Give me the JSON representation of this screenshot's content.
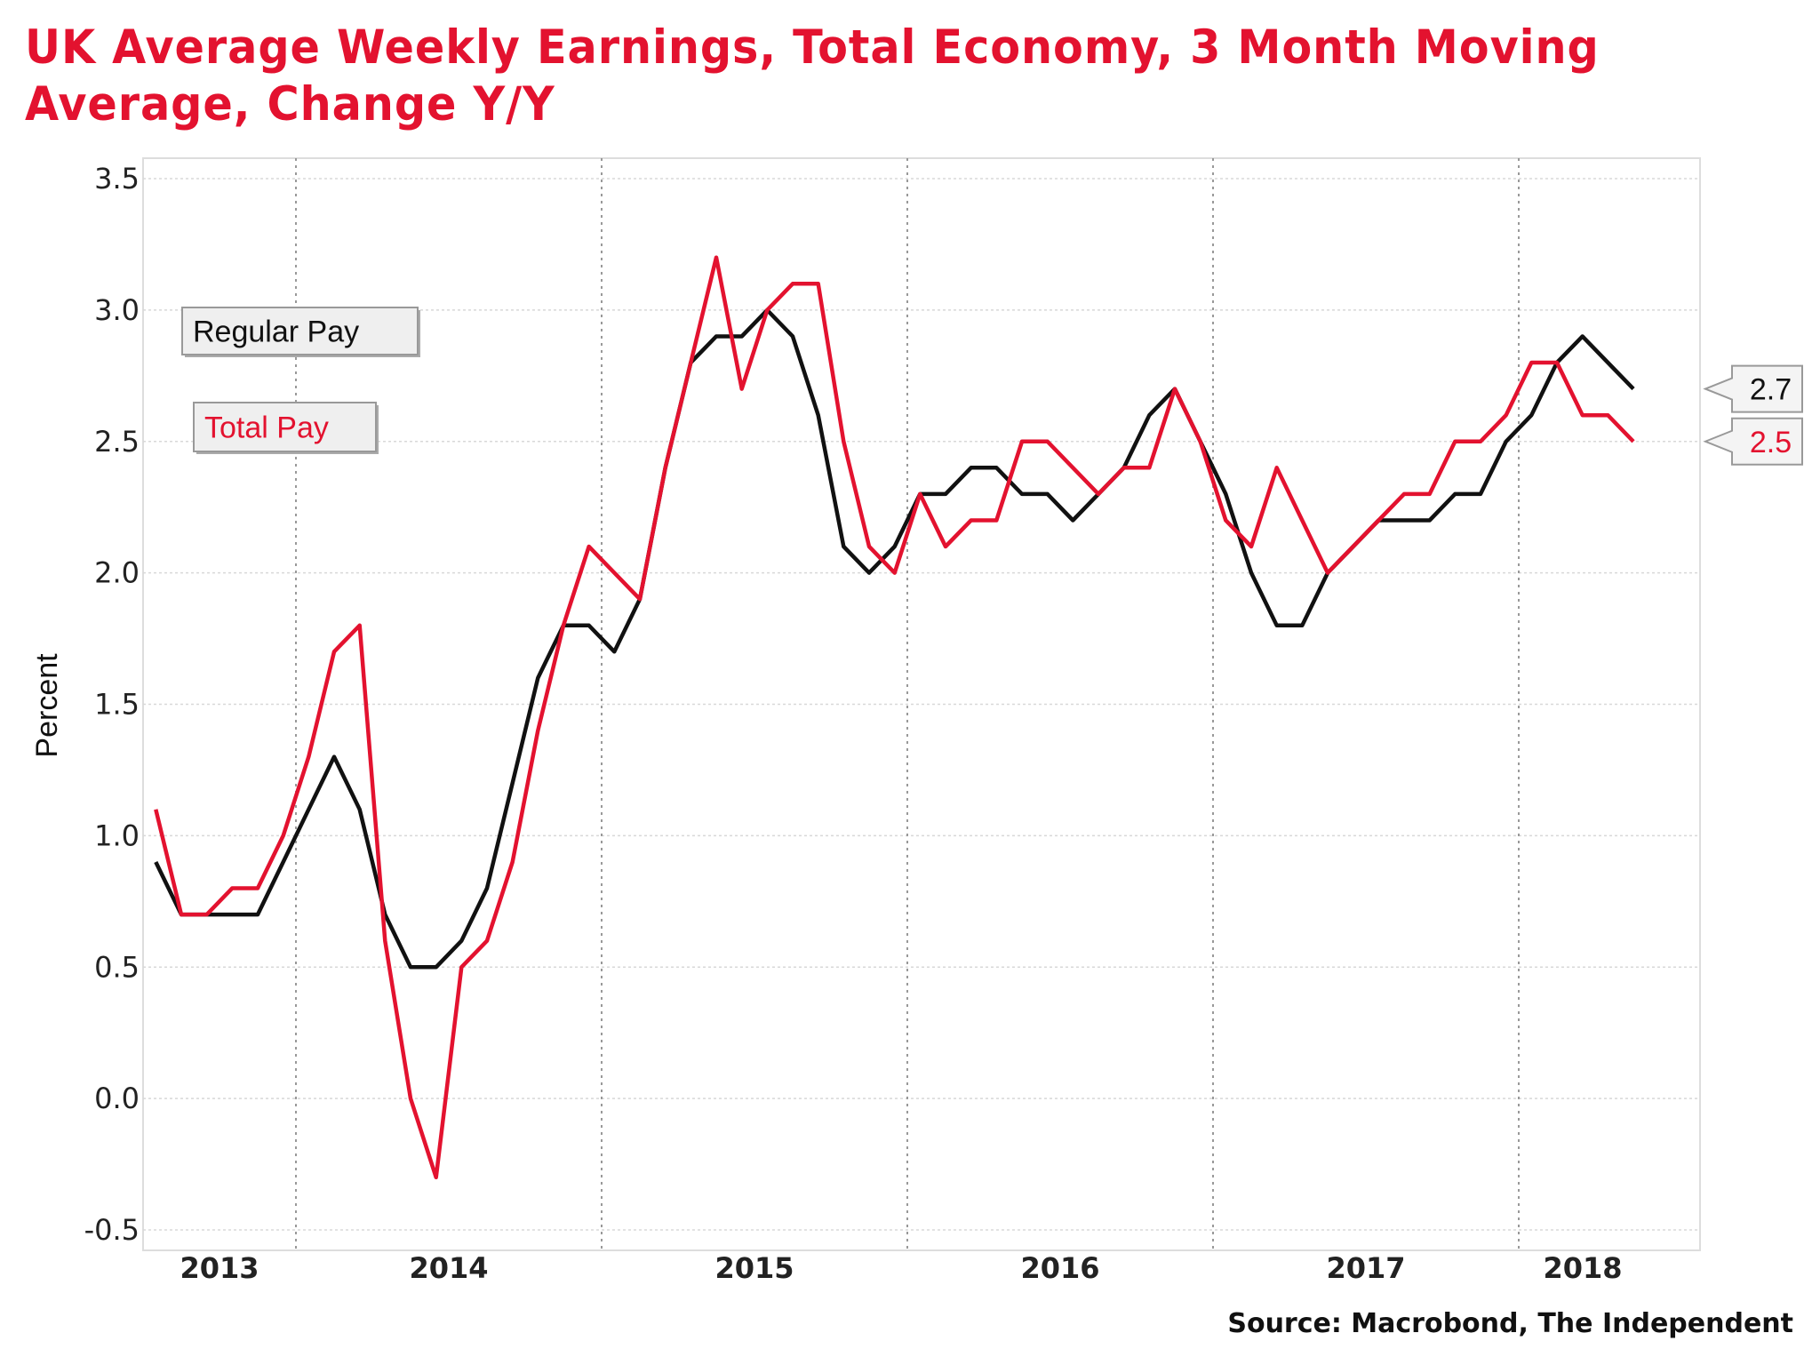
{
  "chart_data": {
    "type": "line",
    "title": "UK Average Weekly Earnings, Total Economy, 3 Month Moving Average, Change Y/Y",
    "ylabel": "Percent",
    "xlabel": "",
    "source": "Source: Macrobond, The Independent",
    "ylim": [
      -0.5,
      3.5
    ],
    "yticks": [
      "3.5",
      "3.0",
      "2.5",
      "2.0",
      "1.5",
      "1.0",
      "0.5",
      "0.0",
      "-0.5"
    ],
    "xticks": [
      "2013",
      "2014",
      "2015",
      "2016",
      "2017",
      "2018"
    ],
    "x_start": "2013-07",
    "x_end": "2018-05",
    "x_frequency": "monthly",
    "grid": true,
    "legend_placement": "top-left",
    "series": [
      {
        "name": "Regular Pay",
        "color": "#111111",
        "last_label": "2.7",
        "values": [
          0.9,
          0.7,
          0.7,
          0.7,
          0.7,
          0.9,
          1.1,
          1.3,
          1.1,
          0.7,
          0.5,
          0.5,
          0.6,
          0.8,
          1.2,
          1.6,
          1.8,
          1.8,
          1.7,
          1.9,
          2.4,
          2.8,
          2.9,
          2.9,
          3.0,
          2.9,
          2.6,
          2.1,
          2.0,
          2.1,
          2.3,
          2.3,
          2.4,
          2.4,
          2.3,
          2.3,
          2.2,
          2.3,
          2.4,
          2.6,
          2.7,
          2.5,
          2.3,
          2.0,
          1.8,
          1.8,
          2.0,
          2.1,
          2.2,
          2.2,
          2.2,
          2.3,
          2.3,
          2.5,
          2.6,
          2.8,
          2.9,
          2.8,
          2.7
        ]
      },
      {
        "name": "Total Pay",
        "color": "#e3122f",
        "last_label": "2.5",
        "values": [
          1.1,
          0.7,
          0.7,
          0.8,
          0.8,
          1.0,
          1.3,
          1.7,
          1.8,
          0.6,
          0.0,
          -0.3,
          0.5,
          0.6,
          0.9,
          1.4,
          1.8,
          2.1,
          2.0,
          1.9,
          2.4,
          2.8,
          3.2,
          2.7,
          3.0,
          3.1,
          3.1,
          2.5,
          2.1,
          2.0,
          2.3,
          2.1,
          2.2,
          2.2,
          2.5,
          2.5,
          2.4,
          2.3,
          2.4,
          2.4,
          2.7,
          2.5,
          2.2,
          2.1,
          2.4,
          2.2,
          2.0,
          2.1,
          2.2,
          2.3,
          2.3,
          2.5,
          2.5,
          2.6,
          2.8,
          2.8,
          2.6,
          2.6,
          2.5
        ]
      }
    ]
  }
}
